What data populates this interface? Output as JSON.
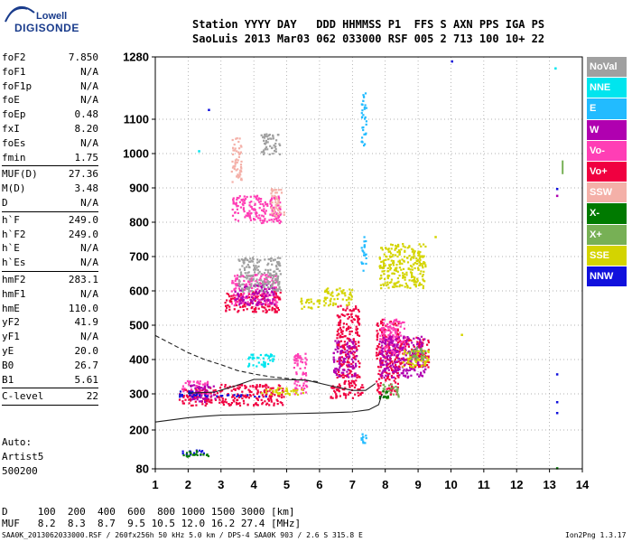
{
  "logo": {
    "top": "Lowell",
    "bottom": "DIGISONDE"
  },
  "header": {
    "line1": "Station YYYY DAY   DDD HHMMSS P1  FFS S AXN PPS IGA PS",
    "line2": "SaoLuis 2013 Mar03 062 033000 RSF 005 2 713 100 10+ 22"
  },
  "params": [
    {
      "name": "foF2",
      "value": "7.850"
    },
    {
      "name": "foF1",
      "value": "N/A"
    },
    {
      "name": "foF1p",
      "value": "N/A"
    },
    {
      "name": "foE",
      "value": "N/A"
    },
    {
      "name": "foEp",
      "value": "0.48"
    },
    {
      "name": "fxI",
      "value": "8.20"
    },
    {
      "name": "foEs",
      "value": "N/A"
    },
    {
      "name": "fmin",
      "value": "1.75",
      "sep": true
    },
    {
      "name": "MUF(D)",
      "value": "27.36"
    },
    {
      "name": "M(D)",
      "value": "3.48"
    },
    {
      "name": "D",
      "value": "N/A",
      "sep": true
    },
    {
      "name": "h`F",
      "value": "249.0"
    },
    {
      "name": "h`F2",
      "value": "249.0"
    },
    {
      "name": "h`E",
      "value": "N/A"
    },
    {
      "name": "h`Es",
      "value": "N/A",
      "sep": true
    },
    {
      "name": "hmF2",
      "value": "283.1"
    },
    {
      "name": "hmF1",
      "value": "N/A"
    },
    {
      "name": "hmE",
      "value": "110.0"
    },
    {
      "name": "yF2",
      "value": "41.9"
    },
    {
      "name": "yF1",
      "value": "N/A"
    },
    {
      "name": "yE",
      "value": "20.0"
    },
    {
      "name": "B0",
      "value": "26.7"
    },
    {
      "name": "B1",
      "value": "5.61",
      "sep": true
    },
    {
      "name": "C-level",
      "value": "22",
      "sep": true
    }
  ],
  "auto": {
    "line1": "Auto:",
    "line2": "Artist5",
    "line3": "500200"
  },
  "footer": {
    "d_line": "D     100  200  400  600  800 1000 1500 3000 [km]",
    "muf_line": "MUF   8.2  8.3  8.7  9.5 10.5 12.0 16.2 27.4 [MHz]",
    "info": "SAA0K_2013062033000.RSF / 260fx256h 50 kHz 5.0 km / DPS-4 SAA0K 903 / 2.6 S 315.8 E",
    "version": "Ion2Png 1.3.17"
  },
  "legend": [
    {
      "label": "NoVal",
      "color": "#a0a0a0"
    },
    {
      "label": "NNE",
      "color": "#00e5ee"
    },
    {
      "label": "E",
      "color": "#22bbff"
    },
    {
      "label": "W",
      "color": "#b000b0"
    },
    {
      "label": "Vo-",
      "color": "#ff3eb5"
    },
    {
      "label": "Vo+",
      "color": "#f00040"
    },
    {
      "label": "SSW",
      "color": "#f4b0a8"
    },
    {
      "label": "X-",
      "color": "#007a00"
    },
    {
      "label": "X+",
      "color": "#77b055"
    },
    {
      "label": "SSE",
      "color": "#d4d400"
    },
    {
      "label": "NNW",
      "color": "#1010dd"
    }
  ],
  "chart_data": {
    "type": "scatter",
    "xlim": [
      1,
      14
    ],
    "ylim": [
      80,
      1280
    ],
    "xticks": [
      "1",
      "2",
      "3",
      "4",
      "5",
      "6",
      "7",
      "8",
      "9",
      "10",
      "11",
      "12",
      "13",
      "14"
    ],
    "yticks": [
      "80",
      "200",
      "300",
      "400",
      "500",
      "600",
      "700",
      "800",
      "900",
      "1000",
      "1100",
      "1280"
    ],
    "grid": true,
    "series": [
      {
        "name": "Vo+",
        "color": "#f00040",
        "clusters": [
          [
            1.7,
            2.9,
            270,
            320
          ],
          [
            2.9,
            4.9,
            270,
            330
          ],
          [
            3.1,
            4.8,
            540,
            600
          ],
          [
            6.3,
            7.3,
            290,
            330
          ],
          [
            7.7,
            8.4,
            300,
            520
          ],
          [
            8.3,
            9.3,
            380,
            470
          ],
          [
            6.5,
            7.2,
            330,
            560
          ]
        ]
      },
      {
        "name": "Vo-",
        "color": "#ff3eb5",
        "clusters": [
          [
            3.3,
            4.7,
            560,
            650
          ],
          [
            3.3,
            4.8,
            800,
            880
          ],
          [
            1.8,
            2.6,
            300,
            340
          ],
          [
            7.8,
            8.6,
            420,
            520
          ],
          [
            5.2,
            5.6,
            300,
            420
          ]
        ]
      },
      {
        "name": "W",
        "color": "#b000b0",
        "clusters": [
          [
            2.0,
            2.8,
            280,
            330
          ],
          [
            3.4,
            4.6,
            560,
            620
          ],
          [
            7.8,
            9.2,
            350,
            470
          ],
          [
            6.4,
            7.1,
            350,
            460
          ]
        ]
      },
      {
        "name": "SSE",
        "color": "#d4d400",
        "clusters": [
          [
            7.8,
            9.2,
            610,
            740
          ],
          [
            6.1,
            7.0,
            560,
            610
          ],
          [
            8.5,
            9.3,
            380,
            430
          ],
          [
            5.4,
            6.0,
            550,
            580
          ],
          [
            4.2,
            5.5,
            300,
            320
          ]
        ]
      },
      {
        "name": "X+",
        "color": "#77b055",
        "clusters": [
          [
            7.9,
            8.4,
            290,
            330
          ],
          [
            8.7,
            9.2,
            400,
            440
          ]
        ]
      },
      {
        "name": "NNW",
        "color": "#1010dd",
        "clusters": [
          [
            1.7,
            2.3,
            292,
            310
          ],
          [
            1.8,
            2.5,
            125,
            140
          ],
          [
            2.0,
            4.6,
            295,
            300
          ]
        ]
      },
      {
        "name": "NNE",
        "color": "#00e5ee",
        "clusters": [
          [
            3.8,
            4.6,
            380,
            420
          ]
        ]
      },
      {
        "name": "X-",
        "color": "#007a00",
        "clusters": [
          [
            1.8,
            2.6,
            120,
            138
          ],
          [
            7.8,
            8.1,
            290,
            310
          ]
        ]
      },
      {
        "name": "SSW",
        "color": "#f4b0a8",
        "clusters": [
          [
            3.3,
            3.6,
            920,
            1050
          ],
          [
            4.5,
            4.9,
            820,
            900
          ]
        ]
      },
      {
        "name": "E",
        "color": "#22bbff",
        "clusters": [
          [
            7.25,
            7.4,
            1020,
            1180
          ],
          [
            7.25,
            7.4,
            660,
            760
          ],
          [
            7.25,
            7.4,
            160,
            200
          ]
        ]
      },
      {
        "name": "NoVal",
        "color": "#a0a0a0",
        "clusters": [
          [
            3.5,
            4.8,
            600,
            700
          ],
          [
            4.2,
            4.8,
            1000,
            1060
          ]
        ]
      }
    ],
    "lines": [
      {
        "style": "solid",
        "x": [
          1.0,
          1.5,
          2.0,
          2.5,
          3.0,
          4.0,
          5.0,
          6.0,
          7.0,
          7.5,
          7.8,
          7.9
        ],
        "y": [
          222,
          228,
          234,
          238,
          241,
          243,
          245,
          247,
          250,
          256,
          270,
          300
        ]
      },
      {
        "style": "solid",
        "x": [
          2.0,
          2.8,
          3.4,
          4.0,
          4.8,
          5.6,
          6.4,
          7.0,
          7.4,
          7.7
        ],
        "y": [
          302,
          305,
          322,
          342,
          342,
          340,
          322,
          310,
          310,
          330
        ]
      },
      {
        "style": "dashed",
        "x": [
          1.0,
          1.5,
          2.0,
          2.5,
          3.0,
          3.5,
          4.0,
          4.5,
          5.0,
          5.5,
          6.0
        ],
        "y": [
          470,
          445,
          420,
          400,
          385,
          368,
          358,
          350,
          345,
          340,
          335
        ]
      }
    ]
  }
}
